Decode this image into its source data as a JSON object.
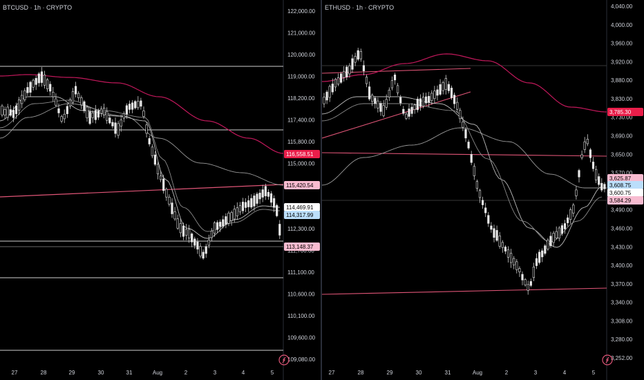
{
  "colors": {
    "background": "#000000",
    "up": "#e8e8e8",
    "down": "#e8e8e8",
    "red_ma": "#c2185b",
    "pink_line": "#e05577",
    "white_line": "#cfcfcf",
    "grey_ma": "#8a8a8a",
    "axis_text": "#d1d4dc"
  },
  "charts": [
    {
      "title": "BTCUSD · 1h · CRYPTO",
      "y_ticks": [
        "122,000.00",
        "121,000.00",
        "120,000.00",
        "119,000.00",
        "118,200.00",
        "117,400.00",
        "116,558.51",
        "115,800.00",
        "115,420.54",
        "115,000.00",
        "114,469.91",
        "114,317.99",
        "113,500.00",
        "113,148.37",
        "112,900.00",
        "112,300.00",
        "111,700.00",
        "111,100.00",
        "110,600.00",
        "110,100.00",
        "109,600.00",
        "109,080.00"
      ],
      "price_badges": [
        {
          "label": "116,558.51",
          "style": "red"
        },
        {
          "label": "115,420.54",
          "style": "pink"
        },
        {
          "label": "114,469.91",
          "style": "white"
        },
        {
          "label": "114,317.99",
          "style": "blue"
        },
        {
          "label": "113,148.37",
          "style": "pink"
        }
      ],
      "x_ticks": [
        "27",
        "28",
        "29",
        "30",
        "31",
        "Aug",
        "2",
        "3",
        "4",
        "5"
      ]
    },
    {
      "title": "ETHUSD · 1h · CRYPTO",
      "y_ticks": [
        "4,040.00",
        "4,000.00",
        "3,960.00",
        "3,920.00",
        "3,880.00",
        "3,830.00",
        "3,785.30",
        "3,730.00",
        "3,690.00",
        "3,650.00",
        "3,625.87",
        "3,608.75",
        "3,600.75",
        "3,584.29",
        "3,570.00",
        "3,530.00",
        "3,490.00",
        "3,460.00",
        "3,430.00",
        "3,400.00",
        "3,370.00",
        "3,340.00",
        "3,308.00",
        "3,280.00",
        "3,252.00"
      ],
      "price_badges": [
        {
          "label": "3,785.30",
          "style": "red"
        },
        {
          "label": "3,625.87",
          "style": "pink"
        },
        {
          "label": "3,608.75",
          "style": "blue"
        },
        {
          "label": "3,600.75",
          "style": "white"
        },
        {
          "label": "3,584.29",
          "style": "pink"
        }
      ],
      "x_ticks": [
        "27",
        "28",
        "29",
        "30",
        "31",
        "Aug",
        "2",
        "3",
        "4",
        "5"
      ]
    }
  ]
}
